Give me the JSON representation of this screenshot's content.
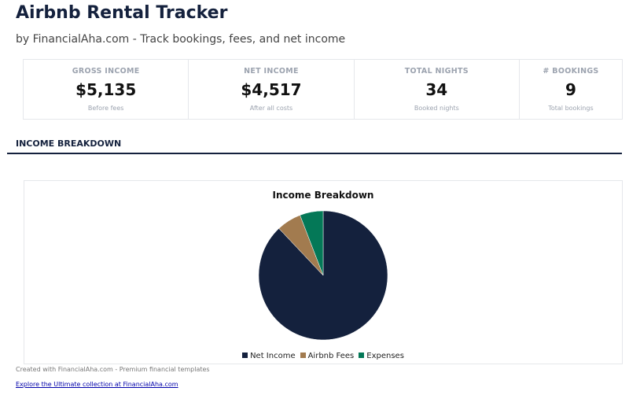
{
  "header": {
    "title": "Airbnb Rental Tracker",
    "subtitle": "by FinancialAha.com - Track bookings, fees, and net income"
  },
  "cards": [
    {
      "label": "GROSS INCOME",
      "value": "$5,135",
      "note": "Before fees"
    },
    {
      "label": "NET INCOME",
      "value": "$4,517",
      "note": "After all costs"
    },
    {
      "label": "TOTAL NIGHTS",
      "value": "34",
      "note": "Booked nights"
    },
    {
      "label": "# BOOKINGS",
      "value": "9",
      "note": "Total bookings"
    }
  ],
  "section": {
    "title": "INCOME BREAKDOWN"
  },
  "chart_data": {
    "type": "pie",
    "title": "Income Breakdown",
    "categories": [
      "Net Income",
      "Airbnb Fees",
      "Expenses"
    ],
    "values": [
      4517,
      318,
      300
    ],
    "colors": [
      "#14213d",
      "#a27b4f",
      "#047857"
    ],
    "legend": "bottom"
  },
  "footer": {
    "text": "Created with FinancialAha.com - Premium financial templates",
    "link": "Explore the Ultimate collection at FinancialAha.com"
  }
}
